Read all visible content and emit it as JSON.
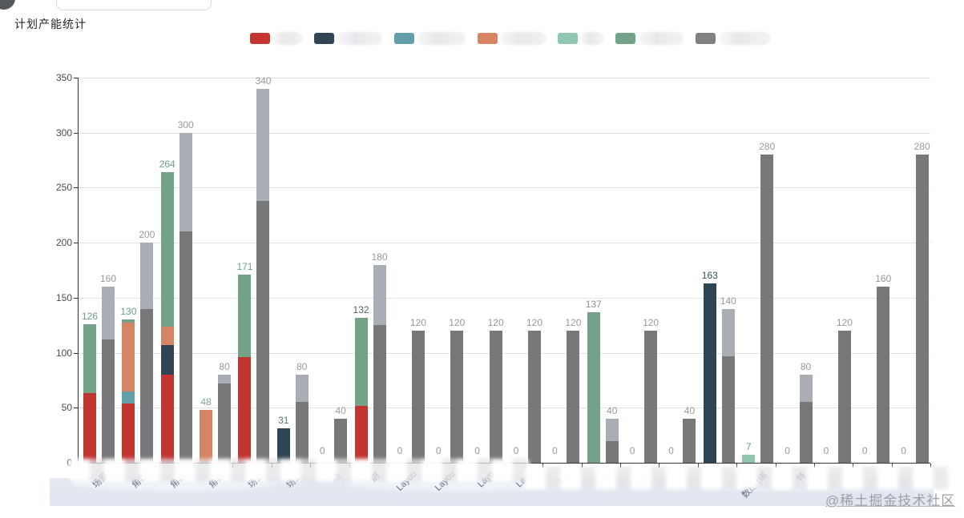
{
  "page": {
    "title": "计划产能统计",
    "watermark": "@稀土掘金技术社区"
  },
  "legend": {
    "items": [
      {
        "name": "series-red",
        "color": "#c23531",
        "label": "",
        "blob_w": 36
      },
      {
        "name": "series-navy",
        "color": "#2f4554",
        "label": "",
        "blob_w": 56
      },
      {
        "name": "series-teal",
        "color": "#61a0a8",
        "label": "",
        "blob_w": 60
      },
      {
        "name": "series-salmon",
        "color": "#d68564",
        "label": "",
        "blob_w": 56
      },
      {
        "name": "series-mint",
        "color": "#91c7ae",
        "label": "",
        "blob_w": 28
      },
      {
        "name": "series-green",
        "color": "#73a287",
        "label": "",
        "blob_w": 56
      },
      {
        "name": "series-gray",
        "color": "#7f8184",
        "label": "",
        "blob_w": 64
      }
    ]
  },
  "chart_data": {
    "type": "bar",
    "stacked": true,
    "title": "计划产能统计",
    "xlabel": "",
    "ylabel": "",
    "ylim": [
      0,
      350
    ],
    "yticks": [
      0,
      50,
      100,
      150,
      200,
      250,
      300,
      350
    ],
    "grid": true,
    "legend_position": "top",
    "series_colors": {
      "red": "#c23531",
      "navy": "#2f4554",
      "teal": "#61a0a8",
      "salmon": "#d68564",
      "mint": "#91c7ae",
      "green": "#73a287",
      "gray_dark": "#77787a",
      "gray_light": "#a9adb4"
    },
    "groups": [
      {
        "category": "场景",
        "colored_segments": [
          [
            "red",
            63
          ],
          [
            "green",
            63
          ]
        ],
        "colored_total": 126,
        "colored_total_color": "#6f9d80",
        "gray_segments": [
          112,
          48
        ],
        "gray_total": 160
      },
      {
        "category": "角色",
        "colored_segments": [
          [
            "red",
            54
          ],
          [
            "teal",
            11
          ],
          [
            "salmon",
            62
          ],
          [
            "green",
            3
          ]
        ],
        "colored_total": 130,
        "colored_total_color": "#6f9d80",
        "gray_segments": [
          140,
          60
        ],
        "gray_total": 200
      },
      {
        "category": "角色",
        "colored_segments": [
          [
            "red",
            80
          ],
          [
            "navy",
            27
          ],
          [
            "salmon",
            17
          ],
          [
            "green",
            140
          ]
        ],
        "colored_total": 264,
        "colored_total_color": "#6f9d80",
        "gray_segments": [
          210,
          90
        ],
        "gray_total": 300
      },
      {
        "category": "角色",
        "colored_segments": [
          [
            "salmon",
            48
          ]
        ],
        "colored_total": 48,
        "colored_total_color": "#84a394",
        "gray_segments": [
          72,
          8
        ],
        "gray_total": 80
      },
      {
        "category": "场景",
        "colored_segments": [
          [
            "red",
            96
          ],
          [
            "green",
            75
          ]
        ],
        "colored_total": 171,
        "colored_total_color": "#6f9d80",
        "gray_segments": [
          238,
          102
        ],
        "gray_total": 340
      },
      {
        "category": "场景",
        "colored_segments": [
          [
            "navy",
            31
          ]
        ],
        "colored_total": 31,
        "colored_total_color": "#5c7a76",
        "gray_segments": [
          55,
          25
        ],
        "gray_total": 80
      },
      {
        "category": "场",
        "colored_segments": [],
        "colored_total": 0,
        "colored_total_color": "#999999",
        "gray_segments": [
          40,
          0
        ],
        "gray_total": 40
      },
      {
        "category": "绑",
        "colored_segments": [
          [
            "red",
            52
          ],
          [
            "green",
            80
          ]
        ],
        "colored_total": 132,
        "colored_total_color": "#49635f",
        "gray_segments": [
          125,
          55
        ],
        "gray_total": 180
      },
      {
        "category": "Layou",
        "colored_segments": [],
        "colored_total": 0,
        "colored_total_color": "#999999",
        "gray_segments": [
          120,
          0
        ],
        "gray_total": 120
      },
      {
        "category": "Layou",
        "colored_segments": [],
        "colored_total": 0,
        "colored_total_color": "#999999",
        "gray_segments": [
          120,
          0
        ],
        "gray_total": 120
      },
      {
        "category": "Layo",
        "colored_segments": [],
        "colored_total": 0,
        "colored_total_color": "#999999",
        "gray_segments": [
          120,
          0
        ],
        "gray_total": 120
      },
      {
        "category": "Layo",
        "colored_segments": [],
        "colored_total": 0,
        "colored_total_color": "#999999",
        "gray_segments": [
          120,
          0
        ],
        "gray_total": 120
      },
      {
        "category": "Lay",
        "colored_segments": [],
        "colored_total": 0,
        "colored_total_color": "#999999",
        "gray_segments": [
          120,
          0
        ],
        "gray_total": 120
      },
      {
        "category": "Lay",
        "colored_segments": [
          [
            "green",
            137
          ]
        ],
        "colored_total": 137,
        "colored_total_color": "#8e8e8e",
        "gray_segments": [
          20,
          20
        ],
        "gray_total": 40
      },
      {
        "category": "Lay",
        "colored_segments": [],
        "colored_total": 0,
        "colored_total_color": "#999999",
        "gray_segments": [
          120,
          0
        ],
        "gray_total": 120
      },
      {
        "category": "",
        "colored_segments": [],
        "colored_total": 0,
        "colored_total_color": "#999999",
        "gray_segments": [
          40,
          0
        ],
        "gray_total": 40
      },
      {
        "category": "",
        "colored_segments": [
          [
            "navy",
            163
          ]
        ],
        "colored_total": 163,
        "colored_total_color": "#35505c",
        "gray_segments": [
          97,
          43
        ],
        "gray_total": 140
      },
      {
        "category": "数组 (绑",
        "colored_segments": [
          [
            "mint",
            7
          ]
        ],
        "colored_total": 7,
        "colored_total_color": "#67a287",
        "gray_segments": [
          280,
          0
        ],
        "gray_total": 280
      },
      {
        "category": "特",
        "colored_segments": [],
        "colored_total": 0,
        "colored_total_color": "#999999",
        "gray_segments": [
          55,
          25
        ],
        "gray_total": 80
      },
      {
        "category": "",
        "colored_segments": [],
        "colored_total": 0,
        "colored_total_color": "#999999",
        "gray_segments": [
          120,
          0
        ],
        "gray_total": 120
      },
      {
        "category": "",
        "colored_segments": [],
        "colored_total": 0,
        "colored_total_color": "#999999",
        "gray_segments": [
          160,
          0
        ],
        "gray_total": 160
      },
      {
        "category": "",
        "colored_segments": [],
        "colored_total": 0,
        "colored_total_color": "#999999",
        "gray_segments": [
          280,
          0
        ],
        "gray_total": 280
      }
    ],
    "gray_total_label_color": "#999999",
    "zero_label_color": "#999999"
  }
}
